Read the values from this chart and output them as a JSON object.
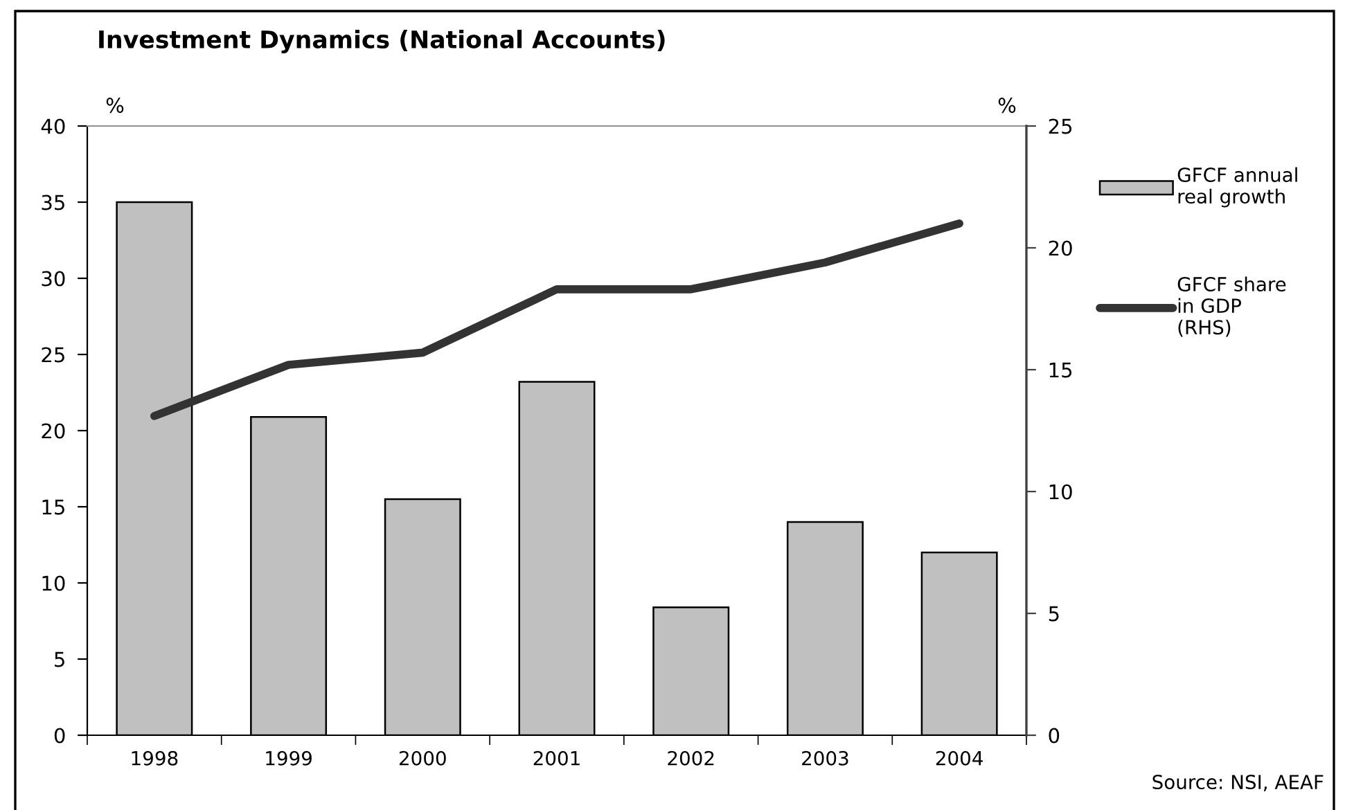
{
  "chart_data": {
    "type": "bar",
    "title": "Investment Dynamics (National Accounts)",
    "ylabel": "%",
    "y2label": "%",
    "categories": [
      "1998",
      "1999",
      "2000",
      "2001",
      "2002",
      "2003",
      "2004"
    ],
    "series": [
      {
        "name": "GFCF annual\nreal growth",
        "color": "#c0c0c0",
        "values": [
          35.0,
          20.9,
          15.5,
          23.2,
          8.4,
          14.0,
          12.0
        ]
      },
      {
        "name": "GFCF share\nin GDP\n(RHS)",
        "type": "line",
        "axis": "y2",
        "color": "#333333",
        "values": [
          13.1,
          15.2,
          15.7,
          18.3,
          18.3,
          19.4,
          21.0
        ]
      }
    ],
    "ylim": [
      0,
      40
    ],
    "yticks": [
      0,
      5,
      10,
      15,
      20,
      25,
      30,
      35,
      40
    ],
    "y2lim": [
      0,
      25
    ],
    "y2ticks": [
      0,
      5,
      10,
      15,
      20,
      25
    ],
    "legend": "right",
    "line_style": "solid",
    "annotations": [
      "Source: NSI, AEAF"
    ]
  }
}
